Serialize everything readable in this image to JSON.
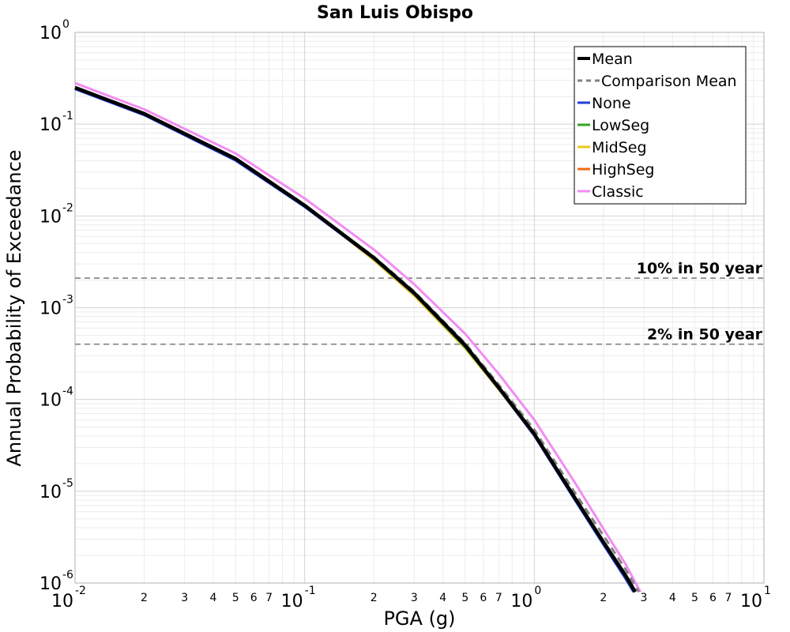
{
  "chart_data": {
    "type": "line",
    "title": "San Luis Obispo",
    "xlabel": "PGA (g)",
    "ylabel": "Annual Probability of Exceedance",
    "x_scale": "log",
    "y_scale": "log",
    "xlim": [
      0.01,
      10
    ],
    "ylim": [
      1e-06,
      1
    ],
    "grid": true,
    "legend_position": "top-right",
    "x_major_ticks": [
      {
        "base": "10",
        "exp": "-2",
        "value": 0.01
      },
      {
        "base": "10",
        "exp": "-1",
        "value": 0.1
      },
      {
        "base": "10",
        "exp": "0",
        "value": 1
      },
      {
        "base": "10",
        "exp": "1",
        "value": 10
      }
    ],
    "x_minor_tick_labels": [
      "2",
      "3",
      "4",
      "5",
      "6",
      "7"
    ],
    "y_major_ticks": [
      {
        "base": "10",
        "exp": "0",
        "value": 1
      },
      {
        "base": "10",
        "exp": "-1",
        "value": 0.1
      },
      {
        "base": "10",
        "exp": "-2",
        "value": 0.01
      },
      {
        "base": "10",
        "exp": "-3",
        "value": 0.001
      },
      {
        "base": "10",
        "exp": "-4",
        "value": 0.0001
      },
      {
        "base": "10",
        "exp": "-5",
        "value": 1e-05
      },
      {
        "base": "10",
        "exp": "-6",
        "value": 1e-06
      }
    ],
    "reference_lines": [
      {
        "label": "10% in 50 year",
        "y": 0.0021,
        "color": "#808080"
      },
      {
        "label": "2% in 50 year",
        "y": 0.0004,
        "color": "#808080"
      }
    ],
    "series": [
      {
        "name": "Mean",
        "color": "#000000",
        "dash": "solid",
        "width": 4.5,
        "x": [
          0.01,
          0.02,
          0.05,
          0.1,
          0.2,
          0.3,
          0.5,
          0.7,
          1,
          1.5,
          2,
          2.5,
          2.75
        ],
        "y": [
          0.25,
          0.13,
          0.042,
          0.013,
          0.0035,
          0.00145,
          0.00039,
          0.000135,
          4.2e-05,
          8.5e-06,
          2.8e-06,
          1.2e-06,
          8e-07
        ]
      },
      {
        "name": "Comparison Mean",
        "color": "#808080",
        "dash": "dashed",
        "width": 3,
        "x": [
          0.01,
          0.02,
          0.05,
          0.1,
          0.2,
          0.3,
          0.5,
          0.7,
          1,
          1.5,
          2,
          2.5,
          2.85
        ],
        "y": [
          0.25,
          0.13,
          0.042,
          0.013,
          0.0036,
          0.0015,
          0.00041,
          0.000145,
          4.7e-05,
          9.7e-06,
          3.3e-06,
          1.4e-06,
          8e-07
        ]
      },
      {
        "name": "None",
        "color": "#1f3fd6",
        "dash": "solid",
        "width": 2.5,
        "x": [
          0.01,
          0.02,
          0.05,
          0.1,
          0.2,
          0.3,
          0.5,
          0.7,
          1,
          1.5,
          2,
          2.5,
          2.7
        ],
        "y": [
          0.24,
          0.125,
          0.04,
          0.0125,
          0.0034,
          0.0014,
          0.00038,
          0.00013,
          4e-05,
          8e-06,
          2.6e-06,
          1.1e-06,
          8e-07
        ]
      },
      {
        "name": "LowSeg",
        "color": "#3aa02a",
        "dash": "solid",
        "width": 2.5,
        "x": [
          0.01,
          0.02,
          0.05,
          0.1,
          0.2,
          0.3,
          0.5,
          0.7,
          1,
          1.5,
          2,
          2.5,
          2.75
        ],
        "y": [
          0.25,
          0.13,
          0.042,
          0.013,
          0.0034,
          0.0014,
          0.00037,
          0.00013,
          4.2e-05,
          8.5e-06,
          2.8e-06,
          1.2e-06,
          8e-07
        ]
      },
      {
        "name": "MidSeg",
        "color": "#e8c81e",
        "dash": "solid",
        "width": 2.5,
        "x": [
          0.01,
          0.02,
          0.05,
          0.1,
          0.2,
          0.3,
          0.5,
          0.7,
          1,
          1.5,
          2,
          2.5,
          2.75
        ],
        "y": [
          0.25,
          0.13,
          0.042,
          0.013,
          0.0033,
          0.00135,
          0.00036,
          0.000128,
          4.1e-05,
          8.4e-06,
          2.8e-06,
          1.2e-06,
          8e-07
        ]
      },
      {
        "name": "HighSeg",
        "color": "#f06a14",
        "dash": "solid",
        "width": 2.5,
        "x": [
          0.01,
          0.02,
          0.05,
          0.1,
          0.2,
          0.3,
          0.5,
          0.7,
          1,
          1.5,
          2,
          2.5,
          2.75
        ],
        "y": [
          0.25,
          0.13,
          0.042,
          0.013,
          0.0033,
          0.00135,
          0.00036,
          0.000128,
          4.1e-05,
          8.4e-06,
          2.8e-06,
          1.2e-06,
          8e-07
        ]
      },
      {
        "name": "Classic",
        "color": "#f28cf2",
        "dash": "solid",
        "width": 3,
        "x": [
          0.01,
          0.02,
          0.05,
          0.1,
          0.2,
          0.3,
          0.5,
          0.7,
          1,
          1.5,
          2,
          2.5,
          2.9
        ],
        "y": [
          0.28,
          0.145,
          0.048,
          0.0155,
          0.0043,
          0.0018,
          0.00052,
          0.00019,
          6e-05,
          1.25e-05,
          3.9e-06,
          1.6e-06,
          8e-07
        ]
      }
    ]
  }
}
